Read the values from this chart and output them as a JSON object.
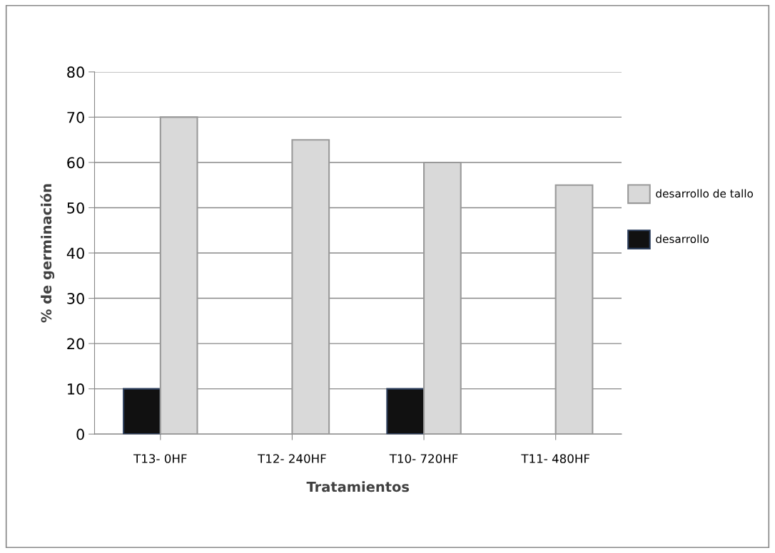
{
  "chart_data": {
    "type": "bar",
    "xlabel": "Tratamientos",
    "ylabel": "% de germinación",
    "categories": [
      "T13- 0HF",
      "T12- 240HF",
      "T10- 720HF",
      "T11- 480HF"
    ],
    "series": [
      {
        "name": "desarrollo",
        "color": "#111111",
        "values": [
          10,
          null,
          10,
          null
        ]
      },
      {
        "name": "desarrollo de tallo",
        "color": "#d9d9d9",
        "values": [
          70,
          65,
          60,
          55
        ]
      }
    ],
    "ylim": [
      0,
      80
    ],
    "yticks": [
      0,
      10,
      20,
      30,
      40,
      50,
      60,
      70,
      80
    ],
    "grid": "y",
    "legend": "right"
  }
}
